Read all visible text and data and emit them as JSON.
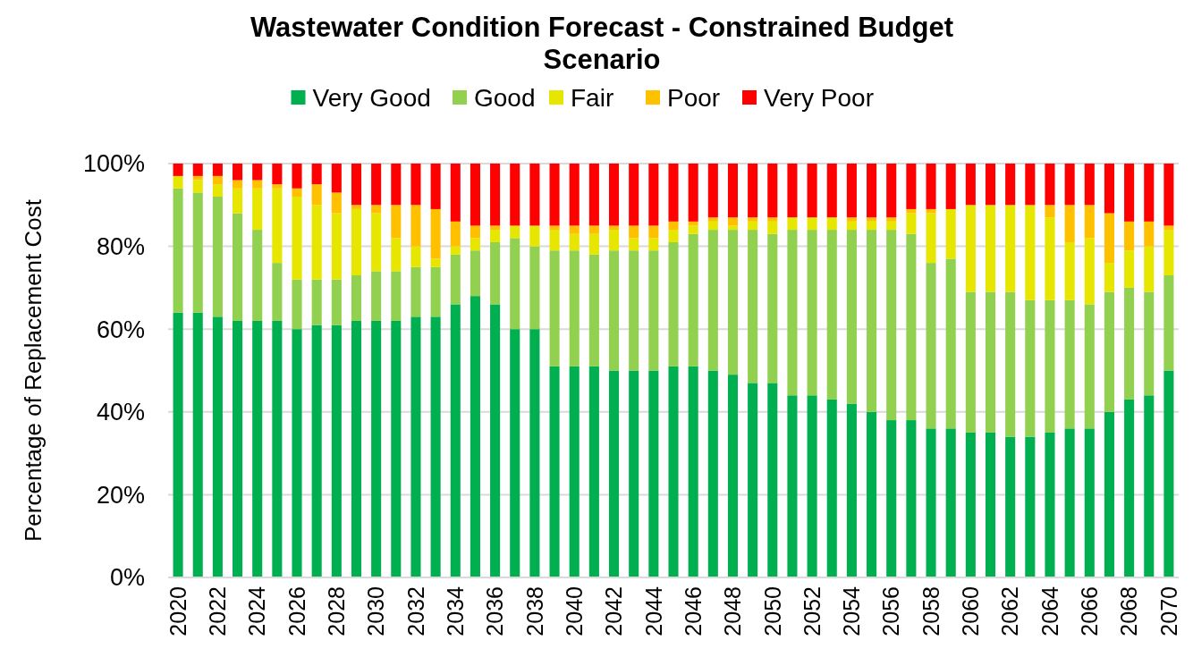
{
  "chart_data": {
    "type": "bar",
    "stacked": true,
    "title": "Wastewater Condition Forecast - Constrained Budget Scenario",
    "ylabel": "Percentage of Replacement Cost",
    "categories": [
      "2020",
      null,
      "2022",
      null,
      "2024",
      null,
      "2026",
      null,
      "2028",
      null,
      "2030",
      null,
      "2032",
      null,
      "2034",
      null,
      "2036",
      null,
      "2038",
      null,
      "2040",
      null,
      "2042",
      null,
      "2044",
      null,
      "2046",
      null,
      "2048",
      null,
      "2050",
      null,
      "2052",
      null,
      "2054",
      null,
      "2056",
      null,
      "2058",
      null,
      "2060",
      null,
      "2062",
      null,
      "2064",
      null,
      "2066",
      null,
      "2068",
      null,
      "2070"
    ],
    "series": [
      {
        "name": "Very Good",
        "color": "#00b050",
        "values": [
          64,
          64,
          63,
          62,
          62,
          62,
          60,
          61,
          61,
          62,
          62,
          62,
          63,
          63,
          66,
          68,
          66,
          60,
          60,
          51,
          51,
          51,
          50,
          50,
          50,
          51,
          51,
          50,
          49,
          47,
          47,
          44,
          44,
          43,
          42,
          40,
          38,
          38,
          36,
          36,
          35,
          35,
          34,
          34,
          35,
          36,
          36,
          40,
          43,
          44,
          50
        ]
      },
      {
        "name": "Good",
        "color": "#92d050",
        "values": [
          30,
          29,
          29,
          26,
          22,
          14,
          12,
          11,
          11,
          11,
          12,
          12,
          12,
          12,
          12,
          11,
          15,
          22,
          20,
          28,
          28,
          27,
          29,
          29,
          29,
          30,
          32,
          34,
          35,
          37,
          36,
          40,
          40,
          41,
          42,
          44,
          46,
          45,
          40,
          41,
          34,
          34,
          35,
          33,
          32,
          31,
          30,
          29,
          27,
          25,
          23
        ]
      },
      {
        "name": "Fair",
        "color": "#e6e600",
        "values": [
          3,
          3,
          3,
          6,
          10,
          18,
          20,
          18,
          16,
          16,
          14,
          8,
          5,
          2,
          2,
          3,
          3,
          3,
          5,
          5,
          4,
          5,
          5,
          3,
          3,
          3,
          2,
          2,
          1,
          2,
          3,
          3,
          3,
          3,
          2,
          2,
          2,
          5,
          12,
          12,
          21,
          21,
          21,
          23,
          20,
          14,
          16,
          7,
          9,
          11,
          11
        ]
      },
      {
        "name": "Poor",
        "color": "#ffc000",
        "values": [
          0,
          1,
          2,
          2,
          2,
          1,
          2,
          5,
          5,
          1,
          2,
          8,
          10,
          12,
          6,
          3,
          1,
          0,
          0,
          1,
          2,
          2,
          1,
          3,
          3,
          2,
          1,
          1,
          2,
          1,
          1,
          0,
          0,
          0,
          1,
          1,
          1,
          1,
          1,
          0,
          0,
          0,
          0,
          0,
          3,
          9,
          8,
          12,
          7,
          6,
          1
        ]
      },
      {
        "name": "Very Poor",
        "color": "#ff0000",
        "values": [
          3,
          3,
          3,
          4,
          4,
          5,
          6,
          5,
          7,
          10,
          10,
          10,
          10,
          11,
          14,
          15,
          15,
          15,
          15,
          15,
          15,
          15,
          15,
          15,
          15,
          14,
          14,
          13,
          13,
          13,
          13,
          13,
          13,
          13,
          13,
          13,
          13,
          11,
          11,
          11,
          10,
          10,
          10,
          10,
          10,
          10,
          10,
          12,
          14,
          14,
          15
        ]
      }
    ],
    "ylim": [
      0,
      100
    ],
    "yticks": [
      {
        "value": 0,
        "label": "0%"
      },
      {
        "value": 20,
        "label": "20%"
      },
      {
        "value": 40,
        "label": "40%"
      },
      {
        "value": 60,
        "label": "60%"
      },
      {
        "value": 80,
        "label": "80%"
      },
      {
        "value": 100,
        "label": "100%"
      }
    ],
    "grid": "y",
    "legend": "top"
  }
}
